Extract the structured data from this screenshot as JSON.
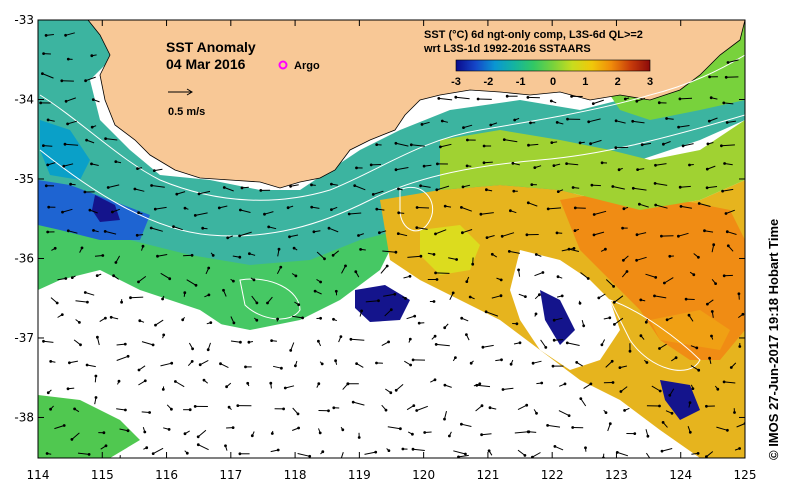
{
  "map": {
    "title": "SST Anomaly",
    "date": "04 Mar 2016",
    "argo_label": "Argo",
    "scale_label": "0.5 m/s",
    "product_line1": "SST (°C) 6d ngt-only comp, L3S-6d QL>=2",
    "product_line2": "wrt L3S-1d 1992-2016 SSTAARS",
    "credit": "©  IMOS 27-Jun-2017 19:18 Hobart Time",
    "lon_ticks": [
      "114",
      "115",
      "116",
      "117",
      "118",
      "119",
      "120",
      "121",
      "122",
      "123",
      "124",
      "125"
    ],
    "lat_ticks": [
      "-33",
      "-34",
      "-35",
      "-36",
      "-37",
      "-38"
    ],
    "colorbar": {
      "min": -3,
      "max": 3,
      "tick_labels": [
        "-3",
        "-2",
        "-1",
        "0",
        "1",
        "2",
        "3"
      ],
      "colors": [
        "#0a0a8c",
        "#1446c8",
        "#0a96d2",
        "#14b4a0",
        "#32c864",
        "#78d23c",
        "#c8dc1e",
        "#f0c80a",
        "#f08c0a",
        "#c83c0a",
        "#8c0a0a"
      ]
    },
    "land_color": "#f8c896"
  }
}
